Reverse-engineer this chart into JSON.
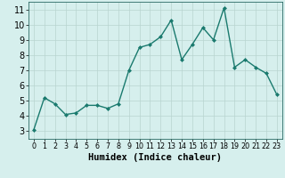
{
  "x": [
    0,
    1,
    2,
    3,
    4,
    5,
    6,
    7,
    8,
    9,
    10,
    11,
    12,
    13,
    14,
    15,
    16,
    17,
    18,
    19,
    20,
    21,
    22,
    23
  ],
  "y": [
    3.1,
    5.2,
    4.8,
    4.1,
    4.2,
    4.7,
    4.7,
    4.5,
    4.8,
    7.0,
    8.5,
    8.7,
    9.2,
    10.3,
    7.7,
    8.7,
    9.8,
    9.0,
    11.1,
    7.2,
    7.7,
    7.2,
    6.8,
    5.4
  ],
  "line_color": "#1a7a6e",
  "marker": "D",
  "marker_size": 2.0,
  "line_width": 1.0,
  "bg_color": "#d6efed",
  "grid_color": "#b8d4d0",
  "xlabel": "Humidex (Indice chaleur)",
  "xlabel_fontsize": 7.5,
  "xlabel_fontweight": "bold",
  "xlim": [
    -0.5,
    23.5
  ],
  "ylim": [
    2.5,
    11.5
  ],
  "yticks": [
    3,
    4,
    5,
    6,
    7,
    8,
    9,
    10,
    11
  ],
  "xticks": [
    0,
    1,
    2,
    3,
    4,
    5,
    6,
    7,
    8,
    9,
    10,
    11,
    12,
    13,
    14,
    15,
    16,
    17,
    18,
    19,
    20,
    21,
    22,
    23
  ],
  "xtick_fontsize": 5.8,
  "ytick_fontsize": 7.0
}
